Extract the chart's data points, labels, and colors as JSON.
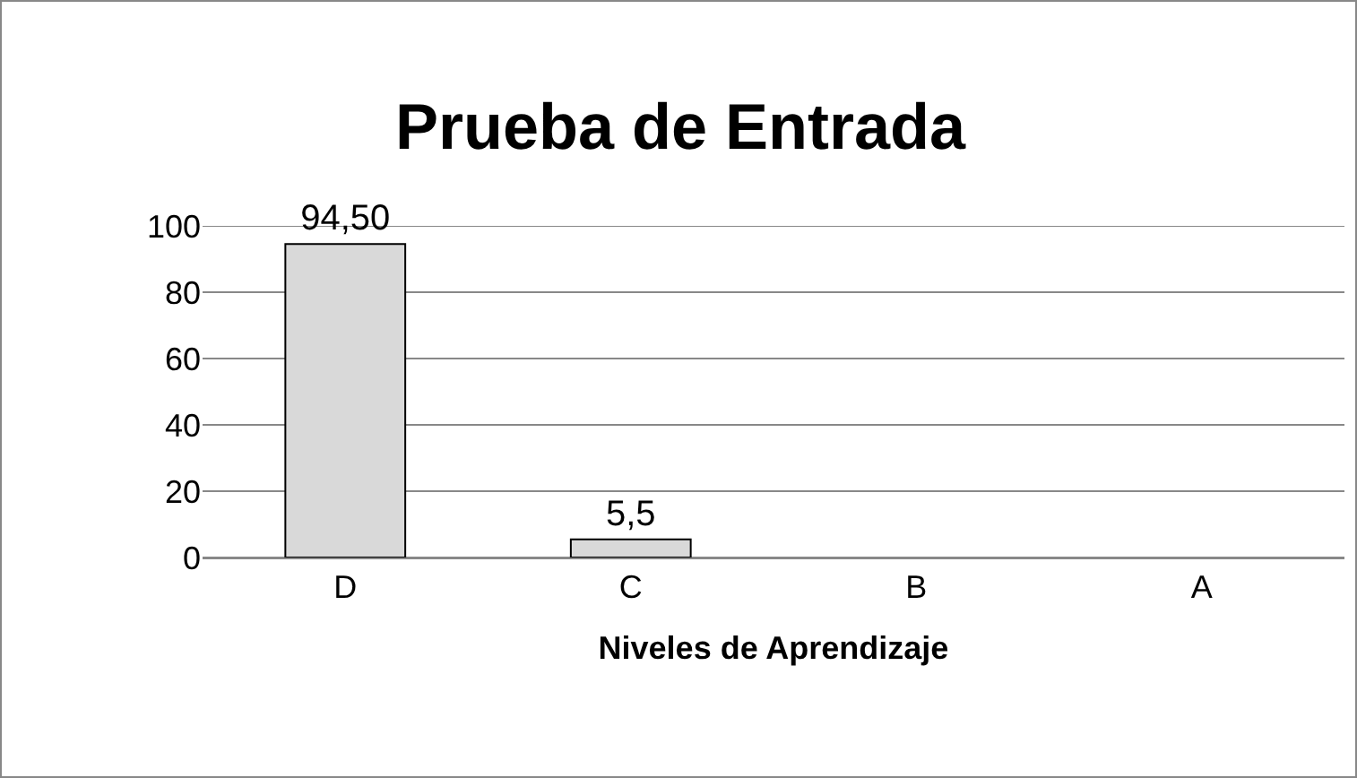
{
  "chart_data": {
    "type": "bar",
    "title": "Prueba de Entrada",
    "xlabel": "Niveles de Aprendizaje",
    "categories": [
      "D",
      "C",
      "B",
      "A"
    ],
    "values": [
      94.5,
      5.5,
      0,
      0
    ],
    "value_labels": [
      "94,50",
      "5,5",
      null,
      null
    ],
    "color": "#d9d9d9",
    "ylim": [
      0,
      100
    ],
    "yticks": [
      0,
      20,
      40,
      60,
      80,
      100
    ],
    "grid": "y",
    "legend": false
  }
}
